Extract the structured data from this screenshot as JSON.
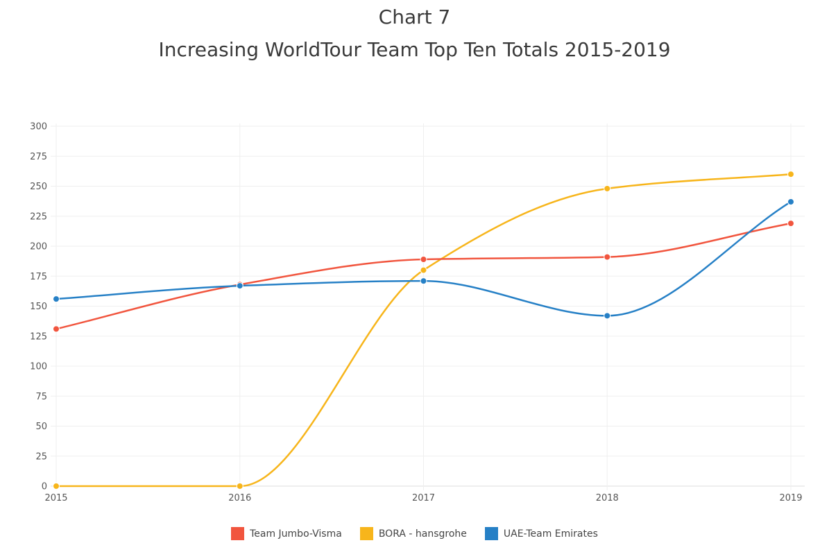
{
  "chart_data": {
    "type": "line",
    "title": "Chart 7",
    "subtitle": "Increasing WorldTour Team Top Ten Totals 2015-2019",
    "xlabel": "",
    "ylabel": "",
    "categories": [
      "2015",
      "2016",
      "2017",
      "2018",
      "2019"
    ],
    "ylim": [
      0,
      300
    ],
    "yticks": [
      0,
      25,
      50,
      75,
      100,
      125,
      150,
      175,
      200,
      225,
      250,
      275,
      300
    ],
    "grid": true,
    "legend_position": "bottom",
    "series": [
      {
        "name": "Team Jumbo-Visma",
        "color": "#f1553e",
        "values": [
          131,
          168,
          189,
          191,
          219
        ]
      },
      {
        "name": "BORA - hansgrohe",
        "color": "#f7b51b",
        "values": [
          0,
          0,
          180,
          248,
          260
        ]
      },
      {
        "name": "UAE-Team Emirates",
        "color": "#2680c6",
        "values": [
          156,
          167,
          171,
          142,
          237
        ]
      }
    ]
  }
}
